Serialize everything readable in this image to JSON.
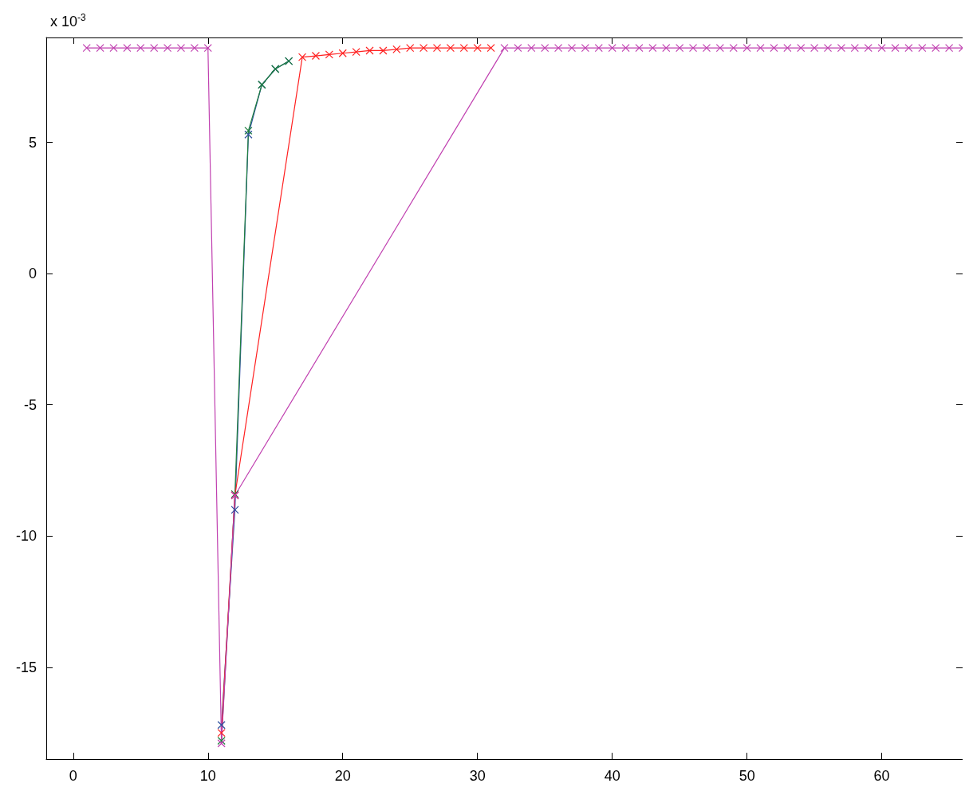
{
  "chart_data": {
    "type": "line",
    "annotations": [
      "x 10$^{-3}$"
    ],
    "series": [
      {
        "color": "#3050a0",
        "x": [
          11,
          12,
          13,
          14,
          15,
          16
        ],
        "values": [
          -17.2,
          -9.0,
          5.3,
          7.2,
          7.8,
          8.1
        ]
      },
      {
        "color": "#208040",
        "x": [
          11,
          12,
          13,
          14,
          15,
          16
        ],
        "values": [
          -17.8,
          -8.4,
          5.45,
          7.2,
          7.8,
          8.1
        ]
      },
      {
        "color": "#ff2020",
        "x": [
          11,
          12,
          17,
          18,
          19,
          20,
          21,
          22,
          23,
          24,
          25,
          26,
          27,
          28,
          29,
          30,
          31
        ],
        "values": [
          -17.5,
          -8.45,
          8.25,
          8.3,
          8.35,
          8.4,
          8.45,
          8.5,
          8.5,
          8.55,
          8.6,
          8.6,
          8.6,
          8.6,
          8.6,
          8.6,
          8.6
        ]
      },
      {
        "color": "#c040b0",
        "x": [
          1,
          2,
          3,
          4,
          5,
          6,
          7,
          8,
          9,
          10,
          11,
          12,
          32,
          33,
          34,
          35,
          36,
          37,
          38,
          39,
          40,
          41,
          42,
          43,
          44,
          45,
          46,
          47,
          48,
          49,
          50,
          51,
          52,
          53,
          54,
          55,
          56,
          57,
          58,
          59,
          60,
          61,
          62,
          63,
          64,
          65,
          66
        ],
        "values": [
          8.6,
          8.6,
          8.6,
          8.6,
          8.6,
          8.6,
          8.6,
          8.6,
          8.6,
          8.6,
          -17.9,
          -8.45,
          8.6,
          8.6,
          8.6,
          8.6,
          8.6,
          8.6,
          8.6,
          8.6,
          8.6,
          8.6,
          8.6,
          8.6,
          8.6,
          8.6,
          8.6,
          8.6,
          8.6,
          8.6,
          8.6,
          8.6,
          8.6,
          8.6,
          8.6,
          8.6,
          8.6,
          8.6,
          8.6,
          8.6,
          8.6,
          8.6,
          8.6,
          8.6,
          8.6,
          8.6,
          8.6
        ]
      }
    ],
    "xlim": [
      -2,
      66
    ],
    "xticks": [
      0,
      10,
      20,
      30,
      40,
      50,
      60
    ],
    "ylim": [
      -18.5,
      9
    ],
    "yticks": [
      -15,
      -10,
      -5,
      0,
      5
    ],
    "grid": false,
    "marker": "cross",
    "line_style": "solid"
  }
}
